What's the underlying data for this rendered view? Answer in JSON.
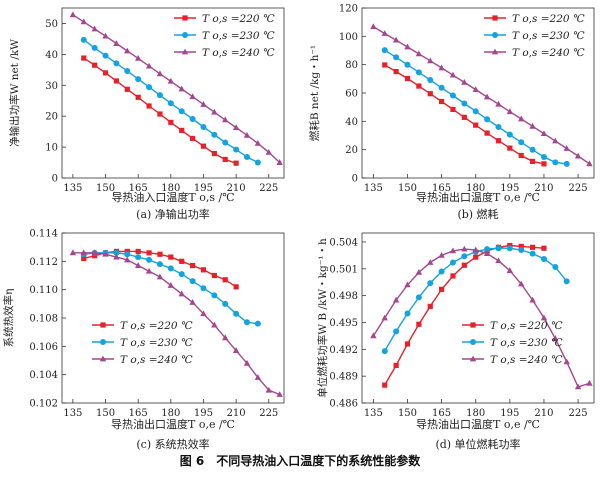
{
  "figure": {
    "caption": "图 6　不同导热油入口温度下的系统性能参数"
  },
  "series_colors": [
    "#e8202a",
    "#12a3e0",
    "#a4478f"
  ],
  "chart_data": [
    {
      "type": "line",
      "subcaption": "(a) 净输出功率",
      "xlabel": "导热油入口温度T o,s /℃",
      "ylabel": "净输出功率W net /kW",
      "xlim": [
        130,
        232
      ],
      "ylim": [
        0,
        55
      ],
      "xticks": [
        135,
        150,
        165,
        180,
        195,
        210,
        225
      ],
      "yticks": [
        0,
        10,
        20,
        30,
        40,
        50
      ],
      "legend": "top-right",
      "series": [
        {
          "name": "T o,s =220 ℃",
          "marker": "square",
          "x": [
            140,
            145,
            150,
            155,
            160,
            165,
            170,
            175,
            180,
            185,
            190,
            195,
            200,
            205,
            210
          ],
          "y": [
            38.8,
            36.5,
            34.0,
            31.4,
            28.7,
            26.1,
            23.3,
            20.7,
            18.0,
            15.4,
            12.8,
            10.3,
            7.9,
            6.0,
            4.8
          ]
        },
        {
          "name": "T o,s =230 ℃",
          "marker": "circle",
          "x": [
            140,
            145,
            150,
            155,
            160,
            165,
            170,
            175,
            180,
            185,
            190,
            195,
            200,
            205,
            210,
            215,
            220
          ],
          "y": [
            44.7,
            42.1,
            39.6,
            37.1,
            34.6,
            32.0,
            29.4,
            26.8,
            24.2,
            21.6,
            19.1,
            16.5,
            14.0,
            11.5,
            9.2,
            6.8,
            5.0
          ]
        },
        {
          "name": "T o,s =240 ℃",
          "marker": "triangle",
          "x": [
            135,
            140,
            145,
            150,
            155,
            160,
            165,
            170,
            175,
            180,
            185,
            190,
            195,
            200,
            205,
            210,
            215,
            220,
            225,
            230
          ],
          "y": [
            52.8,
            50.5,
            48.2,
            45.9,
            43.5,
            41.1,
            38.7,
            36.2,
            33.7,
            31.3,
            28.8,
            26.3,
            23.8,
            21.3,
            18.8,
            16.3,
            13.8,
            11.2,
            8.3,
            5.0
          ]
        }
      ]
    },
    {
      "type": "line",
      "subcaption": "(b) 燃耗",
      "xlabel": "导热油出口温度T o,e /℃",
      "ylabel": "燃耗B net /kg・h⁻¹",
      "xlim": [
        130,
        232
      ],
      "ylim": [
        0,
        120
      ],
      "xticks": [
        135,
        150,
        165,
        180,
        195,
        210,
        225
      ],
      "yticks": [
        0,
        20,
        40,
        60,
        80,
        100,
        120
      ],
      "legend": "top-right",
      "series": [
        {
          "name": "T o,s =220 ℃",
          "marker": "square",
          "x": [
            140,
            145,
            150,
            155,
            160,
            165,
            170,
            175,
            180,
            185,
            190,
            195,
            200,
            205,
            210
          ],
          "y": [
            79.8,
            75.1,
            70.2,
            64.9,
            59.5,
            54.0,
            48.4,
            42.8,
            37.3,
            31.7,
            26.3,
            21.1,
            15.9,
            11.7,
            10.0
          ]
        },
        {
          "name": "T o,s =230 ℃",
          "marker": "circle",
          "x": [
            140,
            145,
            150,
            155,
            160,
            165,
            170,
            175,
            180,
            185,
            190,
            195,
            200,
            205,
            210,
            215,
            220
          ],
          "y": [
            90.3,
            85.2,
            79.9,
            74.6,
            69.2,
            63.7,
            58.2,
            52.6,
            47.1,
            41.5,
            36.0,
            30.6,
            25.2,
            19.9,
            14.8,
            11.0,
            10.0
          ]
        },
        {
          "name": "T o,s =240 ℃",
          "marker": "triangle",
          "x": [
            135,
            140,
            145,
            150,
            155,
            160,
            165,
            170,
            175,
            180,
            185,
            190,
            195,
            200,
            205,
            210,
            215,
            220,
            225,
            230
          ],
          "y": [
            106.8,
            102.0,
            97.3,
            92.5,
            87.6,
            82.7,
            77.7,
            72.6,
            67.5,
            62.4,
            57.2,
            52.1,
            46.8,
            41.7,
            36.5,
            31.3,
            26.1,
            20.8,
            15.5,
            10.0
          ]
        }
      ]
    },
    {
      "type": "line",
      "subcaption": "(c) 系统热效率",
      "xlabel": "导热油出口温度T o,e /℃",
      "ylabel": "系统热效率η",
      "xlim": [
        130,
        232
      ],
      "ylim": [
        0.102,
        0.114
      ],
      "xticks": [
        135,
        150,
        165,
        180,
        195,
        210,
        225
      ],
      "yticks": [
        0.102,
        0.104,
        0.106,
        0.108,
        0.11,
        0.112,
        0.114
      ],
      "legend": "bottom-left",
      "series": [
        {
          "name": "T o,s =220 ℃",
          "marker": "square",
          "x": [
            140,
            145,
            150,
            155,
            160,
            165,
            170,
            175,
            180,
            185,
            190,
            195,
            200,
            205,
            210
          ],
          "y": [
            0.1122,
            0.1124,
            0.1126,
            0.1127,
            0.1127,
            0.1127,
            0.1126,
            0.1125,
            0.1123,
            0.112,
            0.1117,
            0.1114,
            0.111,
            0.1107,
            0.1102
          ]
        },
        {
          "name": "T o,s =230 ℃",
          "marker": "circle",
          "x": [
            140,
            145,
            150,
            155,
            160,
            165,
            170,
            175,
            180,
            185,
            190,
            195,
            200,
            205,
            210,
            215,
            220
          ],
          "y": [
            0.1125,
            0.1126,
            0.1126,
            0.1126,
            0.1125,
            0.1123,
            0.1121,
            0.1118,
            0.1115,
            0.1111,
            0.1106,
            0.1101,
            0.1096,
            0.109,
            0.1083,
            0.1077,
            0.1076
          ]
        },
        {
          "name": "T o,s =240 ℃",
          "marker": "triangle",
          "x": [
            135,
            140,
            145,
            150,
            155,
            160,
            165,
            170,
            175,
            180,
            185,
            190,
            195,
            200,
            205,
            210,
            215,
            220,
            225,
            230
          ],
          "y": [
            0.1126,
            0.1126,
            0.1126,
            0.1125,
            0.1123,
            0.1121,
            0.1117,
            0.1113,
            0.1109,
            0.1103,
            0.1097,
            0.1091,
            0.1083,
            0.1075,
            0.1066,
            0.1057,
            0.1048,
            0.1038,
            0.1029,
            0.1026
          ]
        }
      ]
    },
    {
      "type": "line",
      "subcaption": "(d) 单位燃耗功率",
      "xlabel": "导热油出口温度T o,e /℃",
      "ylabel": "单位燃耗功率W B /kW・kg⁻¹・h",
      "xlim": [
        130,
        232
      ],
      "ylim": [
        0.486,
        0.505
      ],
      "xticks": [
        135,
        150,
        165,
        180,
        195,
        210,
        225
      ],
      "yticks": [
        0.486,
        0.489,
        0.492,
        0.495,
        0.498,
        0.501,
        0.504
      ],
      "legend": "bottom-right",
      "series": [
        {
          "name": "T o,s =220 ℃",
          "marker": "square",
          "x": [
            140,
            145,
            150,
            155,
            160,
            165,
            170,
            175,
            180,
            185,
            190,
            195,
            200,
            205,
            210
          ],
          "y": [
            0.488,
            0.4902,
            0.4926,
            0.4948,
            0.4968,
            0.4987,
            0.5002,
            0.5014,
            0.5023,
            0.503,
            0.5034,
            0.5036,
            0.5035,
            0.5034,
            0.5033
          ]
        },
        {
          "name": "T o,s =230 ℃",
          "marker": "circle",
          "x": [
            140,
            145,
            150,
            155,
            160,
            165,
            170,
            175,
            180,
            185,
            190,
            195,
            200,
            205,
            210,
            215,
            220
          ],
          "y": [
            0.4918,
            0.494,
            0.496,
            0.4978,
            0.4994,
            0.5007,
            0.5017,
            0.5024,
            0.5029,
            0.5032,
            0.5033,
            0.5033,
            0.5031,
            0.5027,
            0.5021,
            0.5012,
            0.4996
          ]
        },
        {
          "name": "T o,s =240 ℃",
          "marker": "triangle",
          "x": [
            135,
            140,
            145,
            150,
            155,
            160,
            165,
            170,
            175,
            180,
            185,
            190,
            195,
            200,
            205,
            210,
            215,
            220,
            225,
            230
          ],
          "y": [
            0.4935,
            0.4955,
            0.4975,
            0.4992,
            0.5006,
            0.5017,
            0.5025,
            0.503,
            0.5032,
            0.5031,
            0.5027,
            0.5019,
            0.5008,
            0.4993,
            0.4975,
            0.4955,
            0.4932,
            0.4906,
            0.4878,
            0.4882
          ]
        }
      ]
    }
  ]
}
